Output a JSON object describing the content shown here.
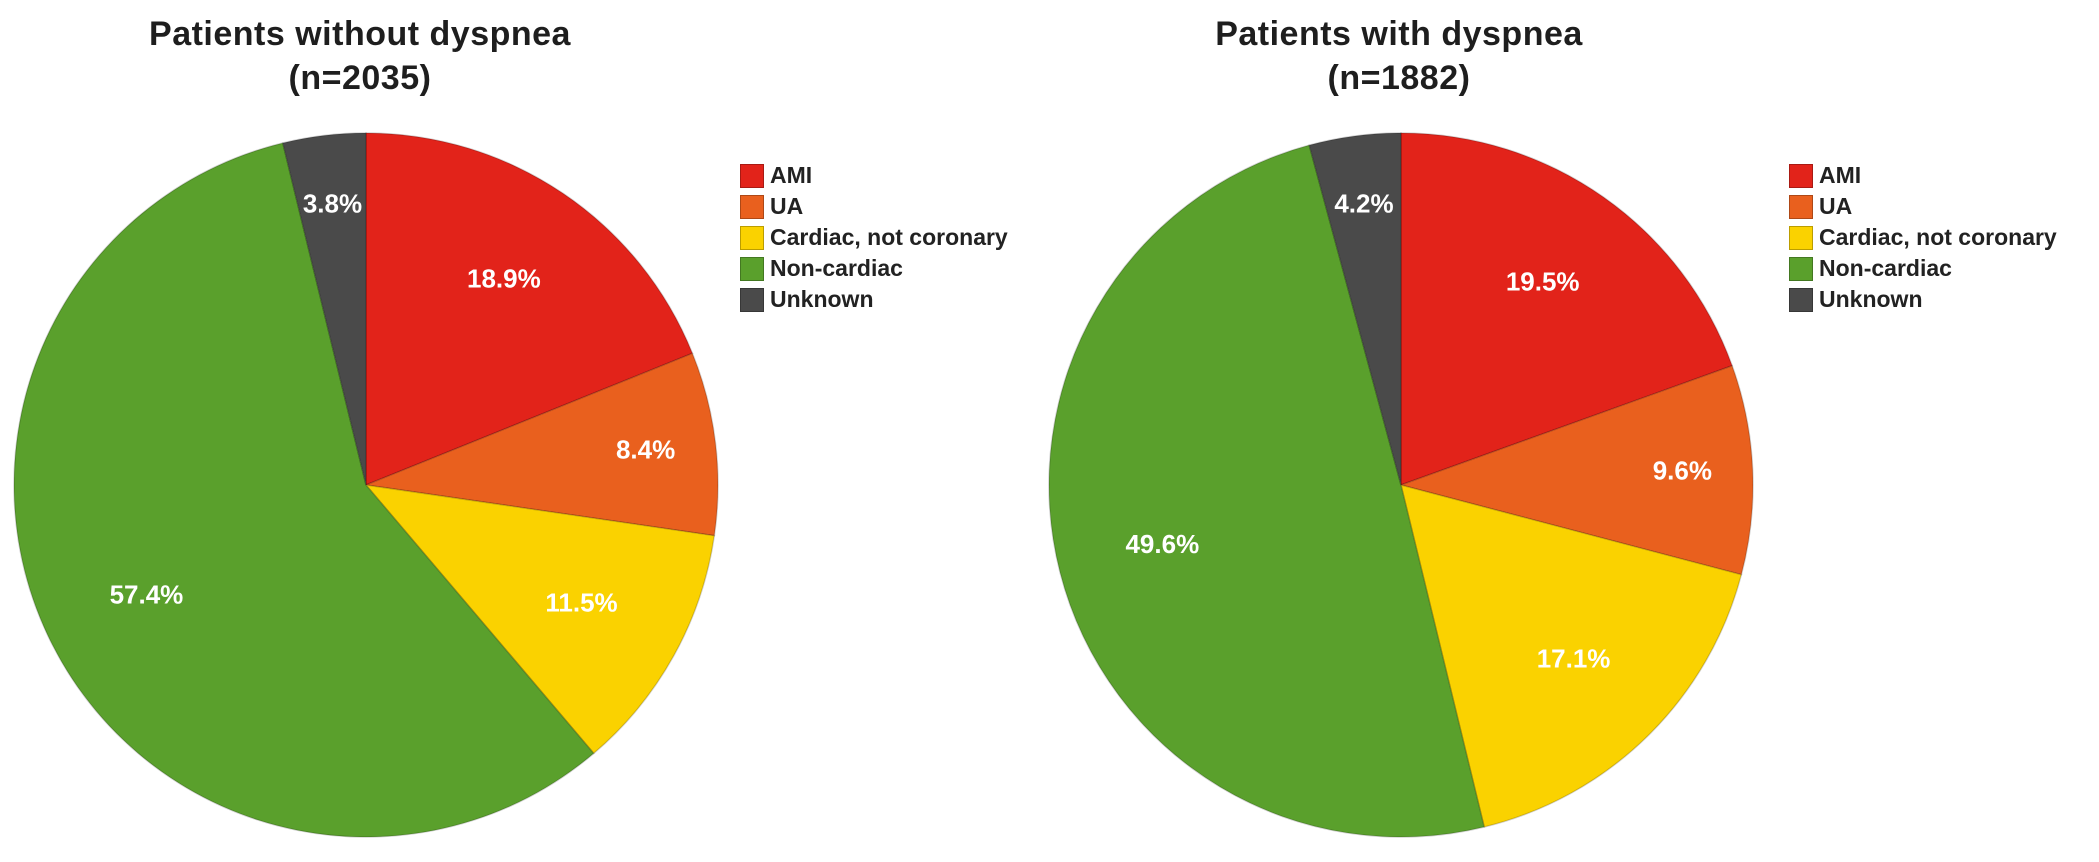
{
  "chart_data": [
    {
      "type": "pie",
      "title_line1": "Patients without dyspnea",
      "title_line2": "(n=2035)",
      "start": "12 o'clock",
      "direction": "clockwise",
      "legend_position": "right",
      "slices": [
        {
          "label": "AMI",
          "value": 18.9,
          "display": "18.9%",
          "color": "#e2231a"
        },
        {
          "label": "UA",
          "value": 8.4,
          "display": "8.4%",
          "color": "#e9601e"
        },
        {
          "label": "Cardiac, not coronary",
          "value": 11.5,
          "display": "11.5%",
          "color": "#fad200"
        },
        {
          "label": "Non-cardiac",
          "value": 57.4,
          "display": "57.4%",
          "color": "#5aa02c"
        },
        {
          "label": "Unknown",
          "value": 3.8,
          "display": "3.8%",
          "color": "#4a4a4a"
        }
      ]
    },
    {
      "type": "pie",
      "title_line1": "Patients with dyspnea",
      "title_line2": "(n=1882)",
      "start": "12 o'clock",
      "direction": "clockwise",
      "legend_position": "right",
      "slices": [
        {
          "label": "AMI",
          "value": 19.5,
          "display": "19.5%",
          "color": "#e2231a"
        },
        {
          "label": "UA",
          "value": 9.6,
          "display": "9.6%",
          "color": "#e9601e"
        },
        {
          "label": "Cardiac, not coronary",
          "value": 17.1,
          "display": "17.1%",
          "color": "#fad200"
        },
        {
          "label": "Non-cardiac",
          "value": 49.6,
          "display": "49.6%",
          "color": "#5aa02c"
        },
        {
          "label": "Unknown",
          "value": 4.2,
          "display": "4.2%",
          "color": "#4a4a4a"
        }
      ]
    }
  ]
}
